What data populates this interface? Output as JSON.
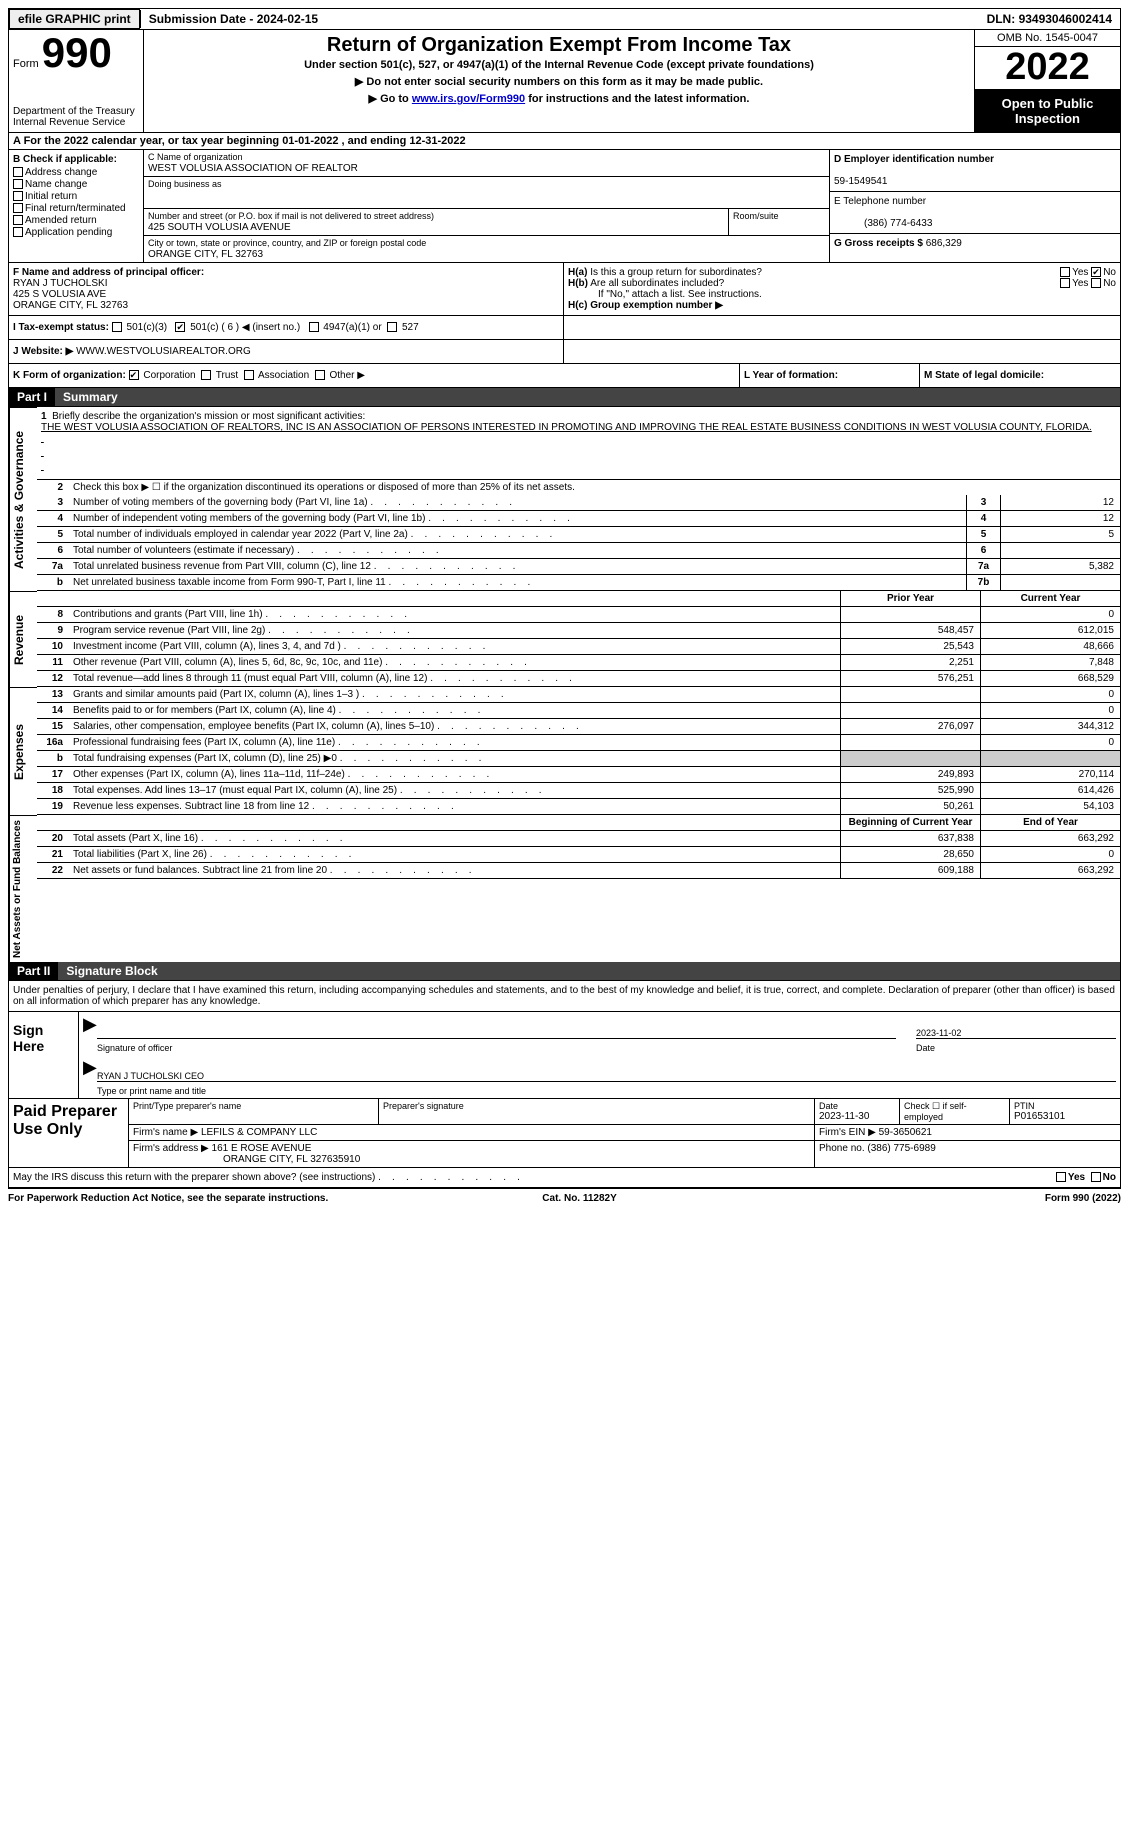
{
  "top": {
    "efile": "efile GRAPHIC print",
    "subdate_label": "Submission Date - ",
    "subdate": "2024-02-15",
    "dln_label": "DLN: ",
    "dln": "93493046002414"
  },
  "header": {
    "form_word": "Form",
    "form_no": "990",
    "dept": "Department of the Treasury\nInternal Revenue Service",
    "title": "Return of Organization Exempt From Income Tax",
    "sub1": "Under section 501(c), 527, or 4947(a)(1) of the Internal Revenue Code (except private foundations)",
    "arrow1": "▶ Do not enter social security numbers on this form as it may be made public.",
    "arrow2_pre": "▶ Go to ",
    "arrow2_link": "www.irs.gov/Form990",
    "arrow2_post": " for instructions and the latest information.",
    "omb": "OMB No. 1545-0047",
    "year": "2022",
    "open": "Open to Public Inspection"
  },
  "row_a": {
    "text": "A For the 2022 calendar year, or tax year beginning 01-01-2022   , and ending 12-31-2022"
  },
  "col_b": {
    "label": "B Check if applicable:",
    "items": [
      "Address change",
      "Name change",
      "Initial return",
      "Final return/terminated",
      "Amended return",
      "Application pending"
    ]
  },
  "col_c": {
    "name_lbl": "C Name of organization",
    "name": "WEST VOLUSIA ASSOCIATION OF REALTOR",
    "dba_lbl": "Doing business as",
    "dba": "",
    "addr_lbl": "Number and street (or P.O. box if mail is not delivered to street address)",
    "addr": "425 SOUTH VOLUSIA AVENUE",
    "room_lbl": "Room/suite",
    "city_lbl": "City or town, state or province, country, and ZIP or foreign postal code",
    "city": "ORANGE CITY, FL  32763"
  },
  "col_d": {
    "ein_lbl": "D Employer identification number",
    "ein": "59-1549541",
    "phone_lbl": "E Telephone number",
    "phone": "(386) 774-6433",
    "gross_lbl": "G Gross receipts $ ",
    "gross": "686,329"
  },
  "row_f": {
    "f_lbl": "F  Name and address of principal officer:",
    "f_name": "RYAN J TUCHOLSKI",
    "f_addr1": "425 S VOLUSIA AVE",
    "f_addr2": "ORANGE CITY, FL  32763"
  },
  "row_h": {
    "ha_lbl": "H(a)  Is this a group return for subordinates?",
    "hb_lbl": "H(b)  Are all subordinates included?",
    "hb_note": "If \"No,\" attach a list. See instructions.",
    "hc_lbl": "H(c)  Group exemption number ▶",
    "yes": "Yes",
    "no": "No"
  },
  "row_i": {
    "lbl": "I  Tax-exempt status:",
    "o1": "501(c)(3)",
    "o2": "501(c) ( 6 ) ◀ (insert no.)",
    "o3": "4947(a)(1) or",
    "o4": "527"
  },
  "row_j": {
    "lbl": "J  Website: ▶ ",
    "val": "WWW.WESTVOLUSIAREALTOR.ORG"
  },
  "row_k": {
    "lbl": "K Form of organization:",
    "o1": "Corporation",
    "o2": "Trust",
    "o3": "Association",
    "o4": "Other ▶",
    "l_lbl": "L Year of formation:",
    "l_val": "",
    "m_lbl": "M State of legal domicile:",
    "m_val": ""
  },
  "part1": {
    "label": "Part I",
    "title": "Summary"
  },
  "ag": {
    "vert": "Activities & Governance",
    "l1_lbl": "Briefly describe the organization's mission or most significant activities:",
    "l1_txt": "THE WEST VOLUSIA ASSOCIATION OF REALTORS, INC IS AN ASSOCIATION OF PERSONS INTERESTED IN PROMOTING AND IMPROVING THE REAL ESTATE BUSINESS CONDITIONS IN WEST VOLUSIA COUNTY, FLORIDA.",
    "l2": "Check this box ▶ ☐  if the organization discontinued its operations or disposed of more than 25% of its net assets.",
    "lines": [
      {
        "n": "3",
        "t": "Number of voting members of the governing body (Part VI, line 1a)",
        "b": "3",
        "v": "12"
      },
      {
        "n": "4",
        "t": "Number of independent voting members of the governing body (Part VI, line 1b)",
        "b": "4",
        "v": "12"
      },
      {
        "n": "5",
        "t": "Total number of individuals employed in calendar year 2022 (Part V, line 2a)",
        "b": "5",
        "v": "5"
      },
      {
        "n": "6",
        "t": "Total number of volunteers (estimate if necessary)",
        "b": "6",
        "v": ""
      },
      {
        "n": "7a",
        "t": "Total unrelated business revenue from Part VIII, column (C), line 12",
        "b": "7a",
        "v": "5,382"
      },
      {
        "n": "b",
        "t": "Net unrelated business taxable income from Form 990-T, Part I, line 11",
        "b": "7b",
        "v": ""
      }
    ]
  },
  "rev": {
    "vert": "Revenue",
    "hdr_prior": "Prior Year",
    "hdr_curr": "Current Year",
    "lines": [
      {
        "n": "8",
        "t": "Contributions and grants (Part VIII, line 1h)",
        "p": "",
        "c": "0"
      },
      {
        "n": "9",
        "t": "Program service revenue (Part VIII, line 2g)",
        "p": "548,457",
        "c": "612,015"
      },
      {
        "n": "10",
        "t": "Investment income (Part VIII, column (A), lines 3, 4, and 7d )",
        "p": "25,543",
        "c": "48,666"
      },
      {
        "n": "11",
        "t": "Other revenue (Part VIII, column (A), lines 5, 6d, 8c, 9c, 10c, and 11e)",
        "p": "2,251",
        "c": "7,848"
      },
      {
        "n": "12",
        "t": "Total revenue—add lines 8 through 11 (must equal Part VIII, column (A), line 12)",
        "p": "576,251",
        "c": "668,529"
      }
    ]
  },
  "exp": {
    "vert": "Expenses",
    "lines": [
      {
        "n": "13",
        "t": "Grants and similar amounts paid (Part IX, column (A), lines 1–3 )",
        "p": "",
        "c": "0"
      },
      {
        "n": "14",
        "t": "Benefits paid to or for members (Part IX, column (A), line 4)",
        "p": "",
        "c": "0"
      },
      {
        "n": "15",
        "t": "Salaries, other compensation, employee benefits (Part IX, column (A), lines 5–10)",
        "p": "276,097",
        "c": "344,312"
      },
      {
        "n": "16a",
        "t": "Professional fundraising fees (Part IX, column (A), line 11e)",
        "p": "",
        "c": "0"
      },
      {
        "n": "b",
        "t": "Total fundraising expenses (Part IX, column (D), line 25) ▶0",
        "p": "GRAY",
        "c": "GRAY"
      },
      {
        "n": "17",
        "t": "Other expenses (Part IX, column (A), lines 11a–11d, 11f–24e)",
        "p": "249,893",
        "c": "270,114"
      },
      {
        "n": "18",
        "t": "Total expenses. Add lines 13–17 (must equal Part IX, column (A), line 25)",
        "p": "525,990",
        "c": "614,426"
      },
      {
        "n": "19",
        "t": "Revenue less expenses. Subtract line 18 from line 12",
        "p": "50,261",
        "c": "54,103"
      }
    ]
  },
  "net": {
    "vert": "Net Assets or Fund Balances",
    "hdr_beg": "Beginning of Current Year",
    "hdr_end": "End of Year",
    "lines": [
      {
        "n": "20",
        "t": "Total assets (Part X, line 16)",
        "p": "637,838",
        "c": "663,292"
      },
      {
        "n": "21",
        "t": "Total liabilities (Part X, line 26)",
        "p": "28,650",
        "c": "0"
      },
      {
        "n": "22",
        "t": "Net assets or fund balances. Subtract line 21 from line 20",
        "p": "609,188",
        "c": "663,292"
      }
    ]
  },
  "part2": {
    "label": "Part II",
    "title": "Signature Block"
  },
  "sig": {
    "intro": "Under penalties of perjury, I declare that I have examined this return, including accompanying schedules and statements, and to the best of my knowledge and belief, it is true, correct, and complete. Declaration of preparer (other than officer) is based on all information of which preparer has any knowledge.",
    "sign_here": "Sign Here",
    "sig_of_officer": "Signature of officer",
    "date_lbl": "Date",
    "date": "2023-11-02",
    "name_title": "RYAN J TUCHOLSKI CEO",
    "type_lbl": "Type or print name and title"
  },
  "prep": {
    "label": "Paid Preparer Use Only",
    "print_lbl": "Print/Type preparer's name",
    "sig_lbl": "Preparer's signature",
    "date_lbl": "Date",
    "date": "2023-11-30",
    "check_lbl": "Check ☐ if self-employed",
    "ptin_lbl": "PTIN",
    "ptin": "P01653101",
    "firm_name_lbl": "Firm's name   ▶ ",
    "firm_name": "LEFILS & COMPANY LLC",
    "firm_ein_lbl": "Firm's EIN ▶ ",
    "firm_ein": "59-3650621",
    "firm_addr_lbl": "Firm's address ▶ ",
    "firm_addr": "161 E ROSE AVENUE",
    "firm_city": "ORANGE CITY, FL  327635910",
    "phone_lbl": "Phone no. ",
    "phone": "(386) 775-6989"
  },
  "discuss": {
    "txt": "May the IRS discuss this return with the preparer shown above? (see instructions)",
    "yes": "Yes",
    "no": "No"
  },
  "footer": {
    "left": "For Paperwork Reduction Act Notice, see the separate instructions.",
    "mid": "Cat. No. 11282Y",
    "right": "Form 990 (2022)"
  }
}
